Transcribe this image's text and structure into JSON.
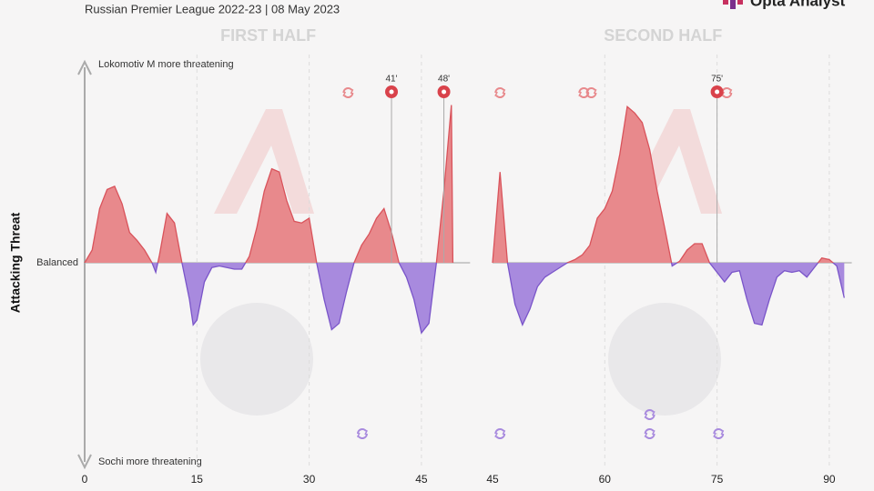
{
  "header": {
    "title": "Russian Premier League 2022-23 | 08 May 2023",
    "brand": "Opta Analyst"
  },
  "chart_data": [
    {
      "type": "area",
      "title": "FIRST HALF",
      "ylabel": "Attacking Threat",
      "annotations": {
        "top": "Lokomotiv M more threatening",
        "bottom": "Sochi more threatening",
        "center": "Balanced"
      },
      "color_above": "#e8898c",
      "color_below": "#a88ade",
      "line_above": "#d9535b",
      "line_below": "#7a55c9",
      "xlim": [
        0,
        51.5
      ],
      "xticks": [
        0,
        15,
        30,
        45
      ],
      "ylim": [
        -1.25,
        1.25
      ],
      "grid": true,
      "x": [
        0,
        1,
        2,
        3,
        4,
        5,
        6,
        7,
        8,
        9,
        9.5,
        10,
        11,
        12,
        13,
        14,
        14.5,
        15,
        16,
        17,
        18,
        19,
        20,
        21,
        22,
        23,
        24,
        25,
        26,
        27,
        28,
        29,
        30,
        31,
        32,
        33,
        34,
        35,
        36,
        37,
        38,
        39,
        40,
        41,
        42,
        43,
        44,
        45,
        46,
        47,
        48,
        49,
        49.2
      ],
      "values": [
        0,
        0.08,
        0.34,
        0.46,
        0.48,
        0.37,
        0.19,
        0.14,
        0.08,
        0,
        -0.06,
        0.05,
        0.31,
        0.25,
        0,
        -0.23,
        -0.39,
        -0.36,
        -0.12,
        -0.03,
        -0.02,
        -0.03,
        -0.04,
        -0.04,
        0.04,
        0.22,
        0.45,
        0.59,
        0.57,
        0.39,
        0.26,
        0.25,
        0.28,
        0,
        -0.23,
        -0.42,
        -0.38,
        -0.18,
        0,
        0.11,
        0.18,
        0.28,
        0.34,
        0.19,
        0,
        -0.09,
        -0.23,
        -0.44,
        -0.38,
        0,
        0.45,
        0.99,
        0
      ],
      "goals": [
        {
          "value": 41,
          "label": "41'"
        },
        {
          "value": 48,
          "label": "48'"
        }
      ],
      "subs_top": [
        35.2
      ],
      "subs_bottom": [
        37.1
      ]
    },
    {
      "type": "area",
      "title": "SECOND HALF",
      "color_above": "#e8898c",
      "color_below": "#a88ade",
      "line_above": "#d9535b",
      "line_below": "#7a55c9",
      "xlim": [
        45,
        93
      ],
      "xticks": [
        45,
        60,
        75,
        90
      ],
      "ylim": [
        -1.25,
        1.25
      ],
      "grid": true,
      "x": [
        45,
        46,
        47,
        48,
        49,
        50,
        51,
        52,
        53,
        54,
        55,
        56,
        57,
        58,
        59,
        60,
        61,
        62,
        63,
        64,
        65,
        66,
        67,
        68,
        69,
        70,
        71,
        72,
        73,
        74,
        75,
        76,
        77,
        78,
        79,
        80,
        81,
        82,
        83,
        84,
        85,
        86,
        87,
        88,
        89,
        90,
        91,
        92
      ],
      "values": [
        0,
        0.57,
        0,
        -0.26,
        -0.39,
        -0.29,
        -0.15,
        -0.09,
        -0.06,
        -0.03,
        0,
        0.02,
        0.05,
        0.11,
        0.28,
        0.34,
        0.45,
        0.68,
        0.98,
        0.94,
        0.88,
        0.71,
        0.45,
        0.22,
        -0.02,
        0.01,
        0.08,
        0.12,
        0.12,
        0,
        -0.06,
        -0.12,
        -0.06,
        -0.05,
        -0.23,
        -0.38,
        -0.39,
        -0.23,
        -0.09,
        -0.05,
        -0.06,
        -0.05,
        -0.09,
        -0.03,
        0.03,
        0.02,
        -0.02,
        -0.22
      ],
      "goals": [
        {
          "value": 75,
          "label": "75'"
        }
      ],
      "subs_top": [
        46,
        57.2,
        58.2,
        76.3
      ],
      "subs_bottom": [
        46,
        66,
        66,
        75.2
      ]
    }
  ]
}
